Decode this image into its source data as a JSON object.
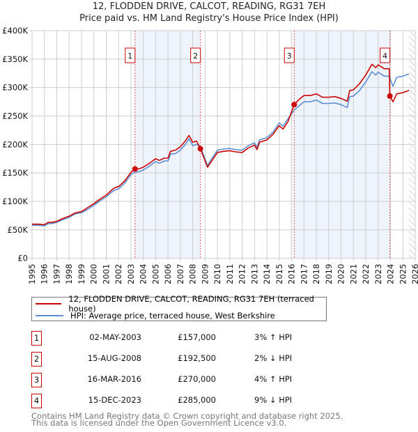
{
  "chart_data": {
    "type": "line",
    "title": "12, FLODDEN DRIVE, CALCOT, READING, RG31 7EH",
    "subtitle": "Price paid vs. HM Land Registry's House Price Index (HPI)",
    "xlim": [
      1995,
      2026
    ],
    "ylim": [
      0,
      400000
    ],
    "grid": true,
    "x_ticks": [
      "1995",
      "1996",
      "1997",
      "1998",
      "1999",
      "2000",
      "2001",
      "2002",
      "2003",
      "2004",
      "2005",
      "2006",
      "2007",
      "2008",
      "2009",
      "2010",
      "2011",
      "2012",
      "2013",
      "2014",
      "2015",
      "2016",
      "2017",
      "2018",
      "2019",
      "2020",
      "2021",
      "2022",
      "2023",
      "2024",
      "2025",
      "2026"
    ],
    "y_ticks": [
      {
        "v": 0,
        "label": "£0"
      },
      {
        "v": 50000,
        "label": "£50K"
      },
      {
        "v": 100000,
        "label": "£100K"
      },
      {
        "v": 150000,
        "label": "£150K"
      },
      {
        "v": 200000,
        "label": "£200K"
      },
      {
        "v": 250000,
        "label": "£250K"
      },
      {
        "v": 300000,
        "label": "£300K"
      },
      {
        "v": 350000,
        "label": "£350K"
      },
      {
        "v": 400000,
        "label": "£400K"
      }
    ],
    "forecast_hatch_from": 2025.5,
    "shaded_ranges": [
      [
        2003.33,
        2008.62
      ],
      [
        2016.21,
        2023.95
      ]
    ],
    "series": [
      {
        "name": "12, FLODDEN DRIVE, CALCOT, READING, RG31 7EH (terraced house)",
        "color": "#cc0000",
        "points": [
          [
            1995,
            60
          ],
          [
            1995.5,
            60
          ],
          [
            1996,
            59
          ],
          [
            1996.3,
            63
          ],
          [
            1996.6,
            63
          ],
          [
            1997,
            65
          ],
          [
            1997.5,
            70
          ],
          [
            1998,
            74
          ],
          [
            1998.5,
            80
          ],
          [
            1999,
            82
          ],
          [
            1999.5,
            89
          ],
          [
            2000,
            96
          ],
          [
            2000.5,
            104
          ],
          [
            2001,
            111
          ],
          [
            2001.5,
            121
          ],
          [
            2001.7,
            124
          ],
          [
            2002,
            126
          ],
          [
            2002.5,
            136
          ],
          [
            2003,
            151
          ],
          [
            2003.33,
            157
          ],
          [
            2003.6,
            157
          ],
          [
            2004,
            160
          ],
          [
            2004.5,
            167
          ],
          [
            2005,
            175
          ],
          [
            2005.3,
            172
          ],
          [
            2005.7,
            176
          ],
          [
            2006,
            176
          ],
          [
            2006.2,
            188
          ],
          [
            2006.6,
            190
          ],
          [
            2007,
            196
          ],
          [
            2007.4,
            206
          ],
          [
            2007.7,
            216
          ],
          [
            2008,
            204
          ],
          [
            2008.3,
            206
          ],
          [
            2008.62,
            192.5
          ],
          [
            2009.2,
            160
          ],
          [
            2009.6,
            173
          ],
          [
            2010,
            186
          ],
          [
            2010.5,
            188
          ],
          [
            2011,
            189
          ],
          [
            2011.5,
            187
          ],
          [
            2012,
            186
          ],
          [
            2012.5,
            194
          ],
          [
            2013,
            199
          ],
          [
            2013.2,
            191
          ],
          [
            2013.4,
            204
          ],
          [
            2014,
            208
          ],
          [
            2014.5,
            218
          ],
          [
            2015,
            233
          ],
          [
            2015.3,
            227
          ],
          [
            2015.7,
            240
          ],
          [
            2016.21,
            270
          ],
          [
            2016.6,
            279
          ],
          [
            2017,
            286
          ],
          [
            2017.5,
            286
          ],
          [
            2018,
            289
          ],
          [
            2018.5,
            283
          ],
          [
            2019,
            283
          ],
          [
            2019.5,
            284
          ],
          [
            2020,
            281
          ],
          [
            2020.5,
            276
          ],
          [
            2020.7,
            295
          ],
          [
            2021,
            296
          ],
          [
            2021.5,
            307
          ],
          [
            2022,
            322
          ],
          [
            2022.5,
            341
          ],
          [
            2022.8,
            335
          ],
          [
            2023,
            340
          ],
          [
            2023.5,
            333
          ],
          [
            2023.9,
            333
          ],
          [
            2023.95,
            285
          ],
          [
            2024.2,
            275
          ],
          [
            2024.5,
            289
          ],
          [
            2025,
            291
          ],
          [
            2025.5,
            295
          ]
        ]
      },
      {
        "name": "HPI: Average price, terraced house, West Berkshire",
        "color": "#5b8fd4",
        "points": [
          [
            1995,
            58
          ],
          [
            1995.5,
            58
          ],
          [
            1996,
            57
          ],
          [
            1996.3,
            61
          ],
          [
            1996.6,
            61
          ],
          [
            1997,
            63
          ],
          [
            1997.5,
            68
          ],
          [
            1998,
            72
          ],
          [
            1998.5,
            78
          ],
          [
            1999,
            80
          ],
          [
            1999.5,
            86
          ],
          [
            2000,
            93
          ],
          [
            2000.5,
            101
          ],
          [
            2001,
            108
          ],
          [
            2001.5,
            117
          ],
          [
            2001.7,
            120
          ],
          [
            2002,
            122
          ],
          [
            2002.5,
            132
          ],
          [
            2003,
            147
          ],
          [
            2003.33,
            152
          ],
          [
            2003.6,
            152
          ],
          [
            2004,
            155
          ],
          [
            2004.5,
            162
          ],
          [
            2005,
            170
          ],
          [
            2005.3,
            167
          ],
          [
            2005.7,
            171
          ],
          [
            2006,
            171
          ],
          [
            2006.2,
            183
          ],
          [
            2006.6,
            184
          ],
          [
            2007,
            190
          ],
          [
            2007.4,
            200
          ],
          [
            2007.7,
            210
          ],
          [
            2008,
            198
          ],
          [
            2008.3,
            200
          ],
          [
            2008.6,
            197
          ],
          [
            2009.2,
            163
          ],
          [
            2009.6,
            177
          ],
          [
            2010,
            190
          ],
          [
            2010.5,
            192
          ],
          [
            2011,
            193
          ],
          [
            2011.5,
            191
          ],
          [
            2012,
            190
          ],
          [
            2012.5,
            198
          ],
          [
            2013,
            203
          ],
          [
            2013.2,
            195
          ],
          [
            2013.4,
            208
          ],
          [
            2014,
            212
          ],
          [
            2014.5,
            222
          ],
          [
            2015,
            238
          ],
          [
            2015.3,
            232
          ],
          [
            2015.7,
            245
          ],
          [
            2016.2,
            260
          ],
          [
            2016.6,
            268
          ],
          [
            2017,
            275
          ],
          [
            2017.5,
            275
          ],
          [
            2018,
            278
          ],
          [
            2018.5,
            272
          ],
          [
            2019,
            272
          ],
          [
            2019.5,
            273
          ],
          [
            2020,
            270
          ],
          [
            2020.5,
            265
          ],
          [
            2020.7,
            284
          ],
          [
            2021,
            285
          ],
          [
            2021.5,
            295
          ],
          [
            2022,
            310
          ],
          [
            2022.5,
            328
          ],
          [
            2022.8,
            322
          ],
          [
            2023,
            327
          ],
          [
            2023.5,
            320
          ],
          [
            2023.9,
            320
          ],
          [
            2024.2,
            302
          ],
          [
            2024.5,
            318
          ],
          [
            2025,
            320
          ],
          [
            2025.5,
            324
          ]
        ]
      }
    ],
    "sales": [
      {
        "id": "1",
        "x": 2003.33,
        "value": 157000,
        "date": "02-MAY-2003",
        "price": "£157,000",
        "hpi": "3% ↑ HPI"
      },
      {
        "id": "2",
        "x": 2008.62,
        "value": 192500,
        "date": "15-AUG-2008",
        "price": "£192,500",
        "hpi": "2% ↓ HPI"
      },
      {
        "id": "3",
        "x": 2016.21,
        "value": 270000,
        "date": "16-MAR-2016",
        "price": "£270,000",
        "hpi": "4% ↑ HPI"
      },
      {
        "id": "4",
        "x": 2023.95,
        "value": 285000,
        "date": "15-DEC-2023",
        "price": "£285,000",
        "hpi": "9% ↓ HPI"
      }
    ]
  },
  "footer": {
    "line1": "Contains HM Land Registry data © Crown copyright and database right 2025.",
    "line2": "This data is licensed under the Open Government Licence v3.0."
  }
}
